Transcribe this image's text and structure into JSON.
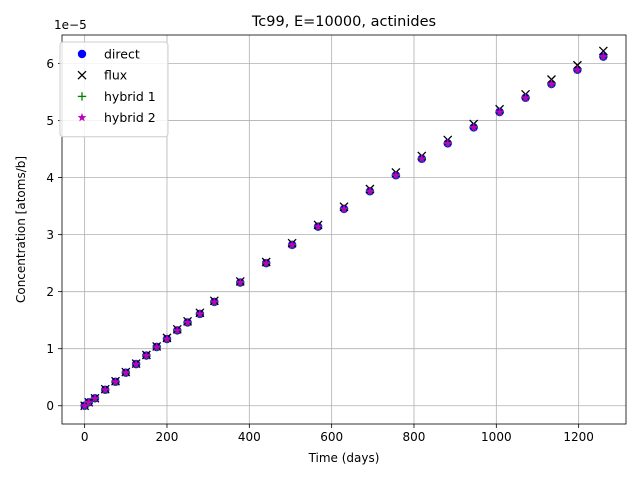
{
  "chart_data": {
    "type": "scatter",
    "title": "Tc99, E=10000, actinides",
    "xlabel": "Time (days)",
    "ylabel": "Concentration [atoms/b]",
    "y_offset_label": "1e−5",
    "xlim": [
      -55,
      1315
    ],
    "ylim": [
      -0.32,
      6.5
    ],
    "y_scale_multiplier": 1e-05,
    "xticks": [
      0,
      200,
      400,
      600,
      800,
      1000,
      1200
    ],
    "yticks": [
      0,
      1,
      2,
      3,
      4,
      5,
      6
    ],
    "grid": true,
    "legend_position": "top-left",
    "series": [
      {
        "name": "direct",
        "marker": "circle",
        "color": "#0000ff",
        "x": [
          0,
          10,
          25,
          50,
          75,
          100,
          125,
          150,
          175,
          200,
          225,
          250,
          280,
          315,
          378,
          441,
          504,
          567,
          630,
          693,
          756,
          819,
          882,
          945,
          1008,
          1071,
          1134,
          1197,
          1260
        ],
        "y": [
          0.0,
          0.06,
          0.13,
          0.28,
          0.42,
          0.58,
          0.73,
          0.88,
          1.03,
          1.17,
          1.32,
          1.46,
          1.61,
          1.82,
          2.16,
          2.5,
          2.82,
          3.14,
          3.45,
          3.76,
          4.04,
          4.33,
          4.6,
          4.88,
          5.15,
          5.4,
          5.64,
          5.89,
          6.12
        ]
      },
      {
        "name": "flux",
        "marker": "x",
        "color": "#000000",
        "x": [
          0,
          10,
          25,
          50,
          75,
          100,
          125,
          150,
          175,
          200,
          225,
          250,
          280,
          315,
          378,
          441,
          504,
          567,
          630,
          693,
          756,
          819,
          882,
          945,
          1008,
          1071,
          1134,
          1197,
          1260
        ],
        "y": [
          0.0,
          0.06,
          0.13,
          0.29,
          0.43,
          0.59,
          0.74,
          0.89,
          1.04,
          1.19,
          1.34,
          1.48,
          1.63,
          1.84,
          2.18,
          2.52,
          2.85,
          3.17,
          3.49,
          3.8,
          4.09,
          4.38,
          4.66,
          4.94,
          5.2,
          5.46,
          5.72,
          5.97,
          6.22
        ]
      },
      {
        "name": "hybrid 1",
        "marker": "plus",
        "color": "#008000",
        "x": [
          0,
          10,
          25,
          50,
          75,
          100,
          125,
          150,
          175,
          200,
          225,
          250,
          280,
          315,
          378,
          441,
          504,
          567,
          630,
          693,
          756,
          819,
          882,
          945,
          1008,
          1071,
          1134,
          1197,
          1260
        ],
        "y": [
          0.0,
          0.06,
          0.13,
          0.28,
          0.42,
          0.58,
          0.73,
          0.88,
          1.03,
          1.17,
          1.32,
          1.46,
          1.61,
          1.82,
          2.16,
          2.5,
          2.82,
          3.14,
          3.45,
          3.76,
          4.04,
          4.33,
          4.6,
          4.88,
          5.15,
          5.4,
          5.64,
          5.89,
          6.12
        ]
      },
      {
        "name": "hybrid 2",
        "marker": "star",
        "color": "#bf00bf",
        "x": [
          0,
          10,
          25,
          50,
          75,
          100,
          125,
          150,
          175,
          200,
          225,
          250,
          280,
          315,
          378,
          441,
          504,
          567,
          630,
          693,
          756,
          819,
          882,
          945,
          1008,
          1071,
          1134,
          1197,
          1260
        ],
        "y": [
          0.0,
          0.06,
          0.13,
          0.28,
          0.42,
          0.58,
          0.73,
          0.88,
          1.03,
          1.17,
          1.32,
          1.46,
          1.61,
          1.82,
          2.16,
          2.5,
          2.82,
          3.14,
          3.45,
          3.76,
          4.04,
          4.33,
          4.6,
          4.88,
          5.15,
          5.4,
          5.64,
          5.89,
          6.12
        ]
      }
    ]
  }
}
